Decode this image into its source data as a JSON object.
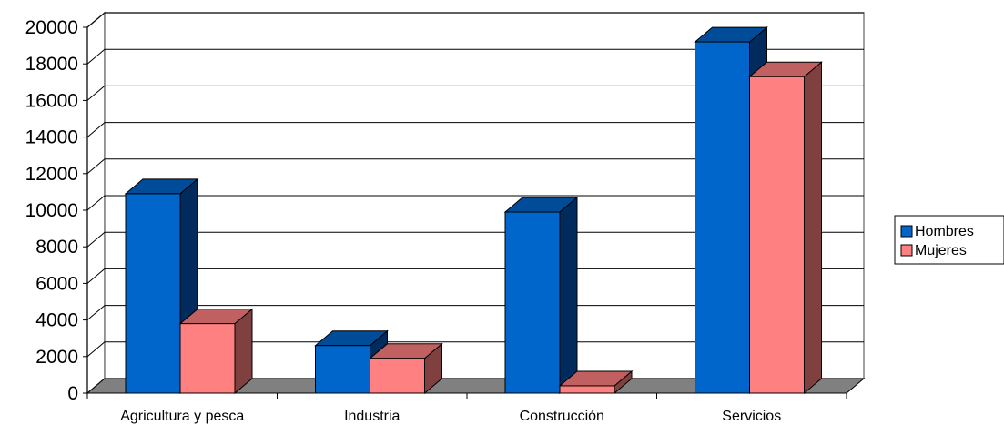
{
  "chart_data": {
    "type": "bar",
    "title": "",
    "xlabel": "",
    "ylabel": "",
    "categories": [
      "Agricultura y pesca",
      "Industria",
      "Construcción",
      "Servicios"
    ],
    "series": [
      {
        "name": "Hombres",
        "values": [
          10900,
          2600,
          9900,
          19200
        ],
        "color": "#0066CC"
      },
      {
        "name": "Mujeres",
        "values": [
          3800,
          1900,
          400,
          17300
        ],
        "color": "#FF8080"
      }
    ],
    "ylim": [
      0,
      20000
    ],
    "yticks": [
      0,
      2000,
      4000,
      6000,
      8000,
      10000,
      12000,
      14000,
      16000,
      18000,
      20000
    ],
    "grid": true,
    "legend_position": "right",
    "three_d": true,
    "colors": {
      "hombres_side": "#002B5C",
      "hombres_top": "#004C99",
      "mujeres_side": "#804040",
      "mujeres_top": "#C06060",
      "floor": "#808080"
    }
  }
}
